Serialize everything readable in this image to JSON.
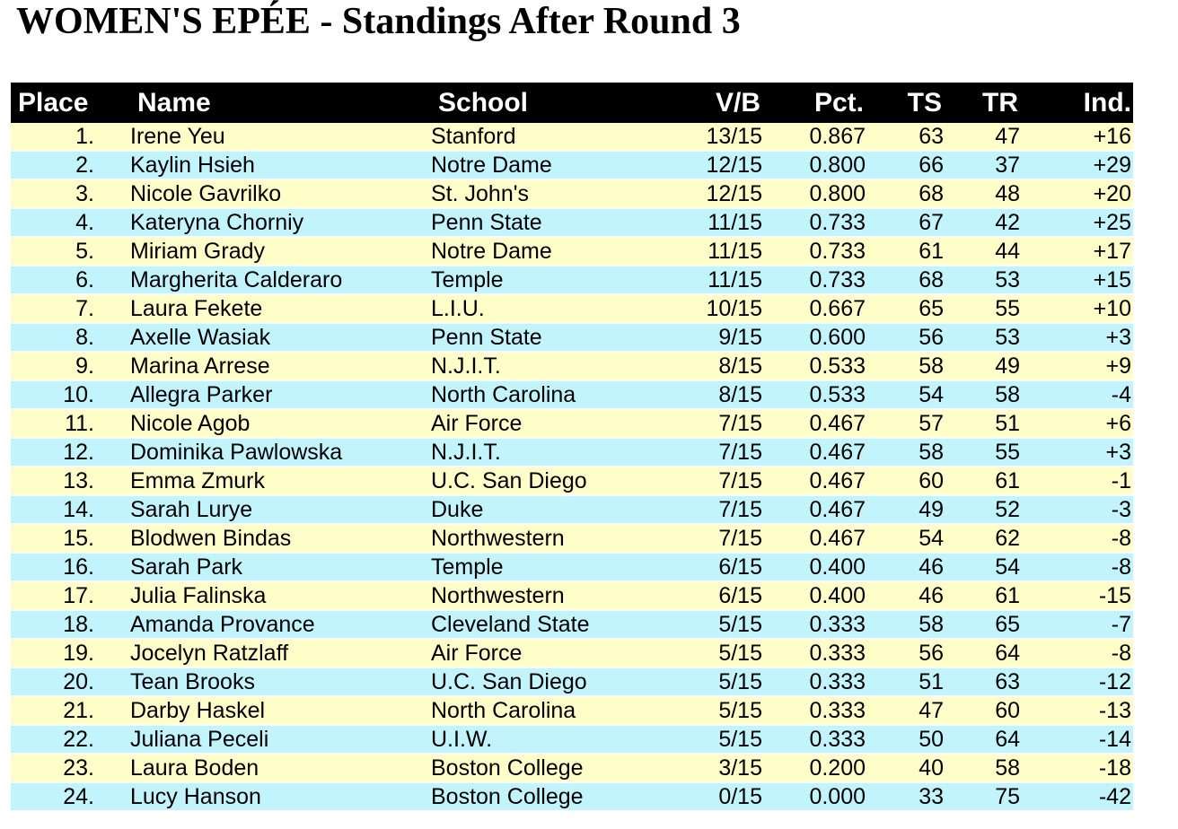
{
  "title": "WOMEN'S EPÉE - Standings After Round 3",
  "colors": {
    "header_bg": "#000000",
    "header_fg": "#ffffff",
    "row_yellow": "#fffdc8",
    "row_cyan": "#c2f4fe"
  },
  "table": {
    "columns": [
      "Place",
      "Name",
      "School",
      "V/B",
      "Pct.",
      "TS",
      "TR",
      "Ind."
    ],
    "rows": [
      {
        "place": "1.",
        "name": "Irene Yeu",
        "school": "Stanford",
        "vb": "13/15",
        "pct": "0.867",
        "ts": "63",
        "tr": "47",
        "ind": "+16"
      },
      {
        "place": "2.",
        "name": "Kaylin Hsieh",
        "school": "Notre Dame",
        "vb": "12/15",
        "pct": "0.800",
        "ts": "66",
        "tr": "37",
        "ind": "+29"
      },
      {
        "place": "3.",
        "name": "Nicole Gavrilko",
        "school": "St. John's",
        "vb": "12/15",
        "pct": "0.800",
        "ts": "68",
        "tr": "48",
        "ind": "+20"
      },
      {
        "place": "4.",
        "name": "Kateryna Chorniy",
        "school": "Penn State",
        "vb": "11/15",
        "pct": "0.733",
        "ts": "67",
        "tr": "42",
        "ind": "+25"
      },
      {
        "place": "5.",
        "name": "Miriam Grady",
        "school": "Notre Dame",
        "vb": "11/15",
        "pct": "0.733",
        "ts": "61",
        "tr": "44",
        "ind": "+17"
      },
      {
        "place": "6.",
        "name": "Margherita Calderaro",
        "school": "Temple",
        "vb": "11/15",
        "pct": "0.733",
        "ts": "68",
        "tr": "53",
        "ind": "+15"
      },
      {
        "place": "7.",
        "name": "Laura Fekete",
        "school": "L.I.U.",
        "vb": "10/15",
        "pct": "0.667",
        "ts": "65",
        "tr": "55",
        "ind": "+10"
      },
      {
        "place": "8.",
        "name": "Axelle Wasiak",
        "school": "Penn State",
        "vb": "9/15",
        "pct": "0.600",
        "ts": "56",
        "tr": "53",
        "ind": "+3"
      },
      {
        "place": "9.",
        "name": "Marina Arrese",
        "school": "N.J.I.T.",
        "vb": "8/15",
        "pct": "0.533",
        "ts": "58",
        "tr": "49",
        "ind": "+9"
      },
      {
        "place": "10.",
        "name": "Allegra Parker",
        "school": "North Carolina",
        "vb": "8/15",
        "pct": "0.533",
        "ts": "54",
        "tr": "58",
        "ind": "-4"
      },
      {
        "place": "11.",
        "name": "Nicole Agob",
        "school": "Air Force",
        "vb": "7/15",
        "pct": "0.467",
        "ts": "57",
        "tr": "51",
        "ind": "+6"
      },
      {
        "place": "12.",
        "name": "Dominika Pawlowska",
        "school": "N.J.I.T.",
        "vb": "7/15",
        "pct": "0.467",
        "ts": "58",
        "tr": "55",
        "ind": "+3"
      },
      {
        "place": "13.",
        "name": "Emma Zmurk",
        "school": "U.C. San Diego",
        "vb": "7/15",
        "pct": "0.467",
        "ts": "60",
        "tr": "61",
        "ind": "-1"
      },
      {
        "place": "14.",
        "name": "Sarah Lurye",
        "school": "Duke",
        "vb": "7/15",
        "pct": "0.467",
        "ts": "49",
        "tr": "52",
        "ind": "-3"
      },
      {
        "place": "15.",
        "name": "Blodwen Bindas",
        "school": "Northwestern",
        "vb": "7/15",
        "pct": "0.467",
        "ts": "54",
        "tr": "62",
        "ind": "-8"
      },
      {
        "place": "16.",
        "name": "Sarah Park",
        "school": "Temple",
        "vb": "6/15",
        "pct": "0.400",
        "ts": "46",
        "tr": "54",
        "ind": "-8"
      },
      {
        "place": "17.",
        "name": "Julia Falinska",
        "school": "Northwestern",
        "vb": "6/15",
        "pct": "0.400",
        "ts": "46",
        "tr": "61",
        "ind": "-15"
      },
      {
        "place": "18.",
        "name": "Amanda Provance",
        "school": "Cleveland State",
        "vb": "5/15",
        "pct": "0.333",
        "ts": "58",
        "tr": "65",
        "ind": "-7"
      },
      {
        "place": "19.",
        "name": "Jocelyn Ratzlaff",
        "school": "Air Force",
        "vb": "5/15",
        "pct": "0.333",
        "ts": "56",
        "tr": "64",
        "ind": "-8"
      },
      {
        "place": "20.",
        "name": "Tean Brooks",
        "school": "U.C. San Diego",
        "vb": "5/15",
        "pct": "0.333",
        "ts": "51",
        "tr": "63",
        "ind": "-12"
      },
      {
        "place": "21.",
        "name": "Darby Haskel",
        "school": "North Carolina",
        "vb": "5/15",
        "pct": "0.333",
        "ts": "47",
        "tr": "60",
        "ind": "-13"
      },
      {
        "place": "22.",
        "name": "Juliana Peceli",
        "school": "U.I.W.",
        "vb": "5/15",
        "pct": "0.333",
        "ts": "50",
        "tr": "64",
        "ind": "-14"
      },
      {
        "place": "23.",
        "name": "Laura Boden",
        "school": "Boston College",
        "vb": "3/15",
        "pct": "0.200",
        "ts": "40",
        "tr": "58",
        "ind": "-18"
      },
      {
        "place": "24.",
        "name": "Lucy Hanson",
        "school": "Boston College",
        "vb": "0/15",
        "pct": "0.000",
        "ts": "33",
        "tr": "75",
        "ind": "-42"
      }
    ]
  }
}
